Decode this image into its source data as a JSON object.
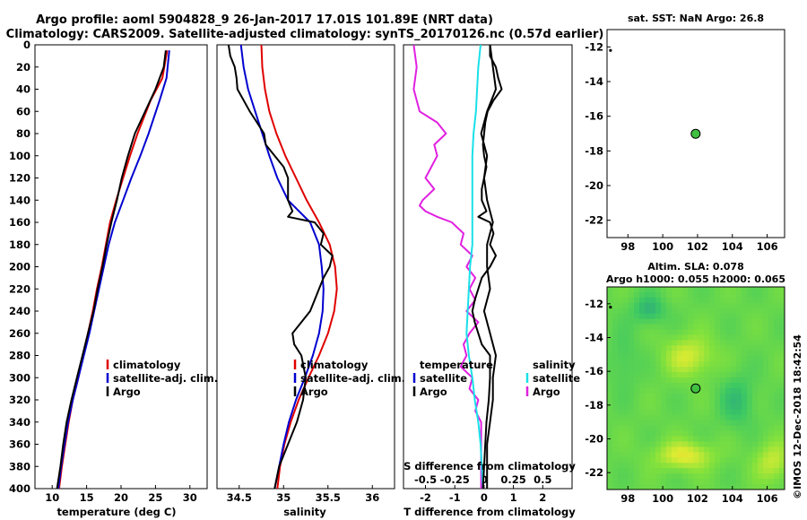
{
  "title": {
    "line1": "Argo profile: aoml 5904828_9 26-Jan-2017 17.01S 101.89E (NRT data)",
    "line2": "Climatology: CARS2009. Satellite-adjusted climatology: synTS_20170126.nc (0.57d earlier)"
  },
  "side_label": "©IMOS 12-Dec-2018 18:42:54",
  "colors": {
    "climatology": "#e00000",
    "satellite": "#0000d0",
    "argo": "#000000",
    "salinity_sat": "#18e0e8",
    "temperature_sat": "#e020e0",
    "marker": "#40c040"
  },
  "chart_data": [
    {
      "id": "temperature",
      "type": "line",
      "xlabel": "temperature (deg C)",
      "ylabel": "",
      "xlim": [
        7.5,
        32.5
      ],
      "ylim": [
        400,
        0
      ],
      "xticks": [
        10,
        15,
        20,
        25,
        30
      ],
      "yticks": [
        0,
        20,
        40,
        60,
        80,
        100,
        120,
        140,
        160,
        180,
        200,
        220,
        240,
        260,
        280,
        300,
        320,
        340,
        360,
        380,
        400
      ],
      "legend": [
        "climatology",
        "satellite-adj. clim.",
        "Argo"
      ],
      "legend_position": "center-right",
      "series": [
        {
          "name": "climatology",
          "color": "#e00000",
          "depth": [
            5,
            30,
            50,
            80,
            100,
            120,
            140,
            160,
            180,
            200,
            220,
            240,
            260,
            280,
            300,
            320,
            340,
            360,
            380,
            400
          ],
          "values": [
            26.7,
            26.0,
            24.3,
            22.4,
            21.3,
            20.3,
            19.3,
            18.4,
            17.8,
            17.2,
            16.5,
            15.9,
            15.2,
            14.5,
            13.8,
            13.0,
            12.4,
            11.9,
            11.4,
            11.0
          ]
        },
        {
          "name": "satellite-adj. clim.",
          "color": "#0000d0",
          "depth": [
            5,
            30,
            50,
            80,
            100,
            120,
            140,
            160,
            180,
            200,
            220,
            240,
            260,
            280,
            300,
            320,
            340,
            360,
            380,
            400
          ],
          "values": [
            27.0,
            26.6,
            25.6,
            24.0,
            22.8,
            21.5,
            20.3,
            19.1,
            18.2,
            17.5,
            16.8,
            16.1,
            15.4,
            14.6,
            13.8,
            13.0,
            12.3,
            11.8,
            11.3,
            10.9
          ]
        },
        {
          "name": "Argo",
          "color": "#000000",
          "depth": [
            5,
            20,
            40,
            60,
            80,
            100,
            120,
            140,
            160,
            180,
            200,
            220,
            240,
            260,
            280,
            300,
            320,
            340,
            360,
            380,
            400
          ],
          "values": [
            26.5,
            26.2,
            25.0,
            23.5,
            22.0,
            21.0,
            20.1,
            19.4,
            18.6,
            17.9,
            17.3,
            16.6,
            16.0,
            15.2,
            14.4,
            13.6,
            12.8,
            12.1,
            11.6,
            11.2,
            10.7
          ]
        }
      ]
    },
    {
      "id": "salinity",
      "type": "line",
      "xlabel": "salinity",
      "xlim": [
        34.25,
        36.25
      ],
      "ylim": [
        400,
        0
      ],
      "xticks": [
        34.5,
        35,
        35.5,
        36
      ],
      "xticklabels": [
        "34.5",
        "35",
        "35.5",
        "36"
      ],
      "legend": [
        "climatology",
        "satellite-adj. clim.",
        "Argo"
      ],
      "legend_position": "center-right",
      "series": [
        {
          "name": "climatology",
          "color": "#e00000",
          "depth": [
            0,
            20,
            40,
            60,
            80,
            100,
            120,
            140,
            160,
            180,
            200,
            220,
            240,
            260,
            280,
            300,
            320,
            340,
            360,
            380,
            400
          ],
          "values": [
            34.75,
            34.76,
            34.79,
            34.84,
            34.92,
            35.02,
            35.14,
            35.26,
            35.4,
            35.52,
            35.58,
            35.6,
            35.57,
            35.5,
            35.4,
            35.28,
            35.17,
            35.08,
            35.01,
            34.96,
            34.93
          ]
        },
        {
          "name": "satellite-adj. clim.",
          "color": "#0000d0",
          "depth": [
            0,
            20,
            40,
            60,
            80,
            100,
            120,
            140,
            160,
            180,
            200,
            220,
            240,
            260,
            280,
            300,
            320,
            340,
            360,
            380,
            400
          ],
          "values": [
            34.52,
            34.55,
            34.6,
            34.68,
            34.76,
            34.84,
            34.93,
            35.05,
            35.3,
            35.4,
            35.43,
            35.45,
            35.44,
            35.4,
            35.33,
            35.24,
            35.14,
            35.06,
            35.0,
            34.95,
            34.9
          ]
        },
        {
          "name": "Argo",
          "color": "#000000",
          "depth": [
            0,
            10,
            20,
            30,
            40,
            50,
            60,
            70,
            80,
            90,
            100,
            110,
            120,
            130,
            140,
            150,
            155,
            160,
            170,
            180,
            190,
            200,
            210,
            220,
            230,
            240,
            250,
            260,
            270,
            280,
            300,
            320,
            340,
            360,
            380,
            400
          ],
          "values": [
            34.38,
            34.4,
            34.45,
            34.47,
            34.48,
            34.55,
            34.62,
            34.7,
            34.78,
            34.8,
            34.9,
            35.0,
            35.05,
            35.05,
            35.05,
            35.1,
            35.05,
            35.35,
            35.45,
            35.42,
            35.55,
            35.52,
            35.45,
            35.4,
            35.35,
            35.3,
            35.2,
            35.1,
            35.12,
            35.2,
            35.25,
            35.22,
            35.15,
            35.05,
            34.95,
            34.9
          ]
        }
      ]
    },
    {
      "id": "difference",
      "type": "line",
      "xlabel": "T difference from climatology",
      "x2label": "S difference from climatology",
      "xlim": [
        -2.75,
        3.0
      ],
      "x2lim": [
        -0.6875,
        0.75
      ],
      "ylim": [
        400,
        0
      ],
      "xticks": [
        -2,
        -1,
        0,
        1,
        2
      ],
      "x2ticks": [
        -0.5,
        -0.25,
        0,
        0.25,
        0.5
      ],
      "x2ticklabels": [
        "-0.5",
        "-0.25",
        "0",
        "0.25",
        "0.5"
      ],
      "legend_temperature": {
        "heading": "temperature",
        "items": [
          "satellite",
          "Argo"
        ]
      },
      "legend_salinity": {
        "heading": "salinity",
        "items": [
          "satellite",
          "Argo"
        ]
      },
      "series": [
        {
          "name": "temperature satellite",
          "axis": "T",
          "color": "#e020e0",
          "depth": [
            0,
            20,
            40,
            60,
            70,
            80,
            90,
            100,
            110,
            120,
            130,
            140,
            145,
            150,
            155,
            160,
            170,
            180,
            190,
            200,
            210,
            220,
            230,
            240,
            250,
            260,
            270,
            280,
            290,
            300,
            310,
            320,
            330,
            340,
            360,
            380,
            400
          ],
          "values": [
            -2.4,
            -2.3,
            -2.4,
            -2.2,
            -1.6,
            -1.3,
            -1.7,
            -1.6,
            -1.8,
            -2.0,
            -1.7,
            -2.1,
            -2.2,
            -2.0,
            -1.6,
            -1.1,
            -0.7,
            -0.8,
            -0.4,
            -0.6,
            -0.3,
            -0.5,
            -0.3,
            -0.6,
            -0.2,
            -0.5,
            -0.7,
            -0.6,
            -0.8,
            -0.4,
            -0.5,
            -0.2,
            -0.3,
            -0.1,
            -0.1,
            -0.1,
            -0.1
          ]
        },
        {
          "name": "temperature Argo",
          "axis": "T",
          "color": "#000000",
          "depth": [
            0,
            20,
            40,
            60,
            80,
            100,
            120,
            140,
            160,
            180,
            200,
            220,
            240,
            260,
            280,
            300,
            320,
            340,
            360,
            380,
            400
          ],
          "values": [
            0.2,
            0.3,
            0.4,
            0.1,
            -0.1,
            0.1,
            0.0,
            0.1,
            0.3,
            0.1,
            0.1,
            0.2,
            0.0,
            0.2,
            0.4,
            0.3,
            0.3,
            0.2,
            0.1,
            0.1,
            0.1
          ]
        },
        {
          "name": "salinity satellite",
          "axis": "S",
          "color": "#18e0e8",
          "depth": [
            0,
            20,
            40,
            60,
            80,
            100,
            120,
            140,
            160,
            180,
            200,
            220,
            240,
            260,
            280,
            300,
            320,
            340,
            360,
            380,
            400
          ],
          "values": [
            -0.03,
            -0.05,
            -0.06,
            -0.07,
            -0.09,
            -0.1,
            -0.1,
            -0.1,
            -0.1,
            -0.1,
            -0.12,
            -0.13,
            -0.14,
            -0.15,
            -0.13,
            -0.1,
            -0.08,
            -0.05,
            -0.03,
            -0.02,
            -0.01
          ]
        },
        {
          "name": "salinity Argo",
          "axis": "S",
          "color": "#000000",
          "depth": [
            0,
            10,
            20,
            30,
            40,
            50,
            60,
            70,
            80,
            90,
            100,
            110,
            120,
            130,
            140,
            150,
            155,
            160,
            170,
            180,
            190,
            200,
            210,
            220,
            230,
            240,
            250,
            260,
            270,
            280,
            300,
            320,
            340,
            360,
            380,
            400
          ],
          "values": [
            0.05,
            0.05,
            0.1,
            0.12,
            0.15,
            0.08,
            0.03,
            0.01,
            0.0,
            -0.01,
            0.0,
            0.02,
            0.0,
            -0.02,
            -0.02,
            0.02,
            -0.05,
            0.05,
            0.08,
            0.05,
            0.1,
            0.05,
            -0.02,
            -0.05,
            -0.08,
            -0.1,
            -0.08,
            -0.05,
            -0.02,
            0.05,
            0.05,
            0.04,
            0.02,
            0.01,
            0.0,
            -0.01
          ]
        }
      ]
    },
    {
      "id": "sst_map",
      "type": "scatter",
      "title": "sat. SST: NaN Argo: 26.8",
      "xlim": [
        96.8,
        107.0
      ],
      "ylim": [
        -23.0,
        -11.0
      ],
      "xticks": [
        98,
        100,
        102,
        104,
        106
      ],
      "yticks": [
        -12,
        -14,
        -16,
        -18,
        -20,
        -22
      ],
      "points": [
        {
          "lon": 101.89,
          "lat": -17.01,
          "label": "Argo profile"
        },
        {
          "lon": 97.0,
          "lat": -12.2,
          "label": "island"
        }
      ]
    },
    {
      "id": "sla_map",
      "type": "heatmap",
      "title_line1": "Altim. SLA: 0.078",
      "title_line2": "Argo h1000: 0.055 h2000: 0.065",
      "xlim": [
        96.8,
        107.0
      ],
      "ylim": [
        -23.0,
        -11.0
      ],
      "xticks": [
        98,
        100,
        102,
        104,
        106
      ],
      "yticks": [
        -12,
        -14,
        -16,
        -18,
        -20,
        -22
      ],
      "points": [
        {
          "lon": 101.89,
          "lat": -17.01,
          "label": "Argo profile"
        },
        {
          "lon": 97.0,
          "lat": -12.2,
          "label": "island"
        }
      ]
    }
  ]
}
